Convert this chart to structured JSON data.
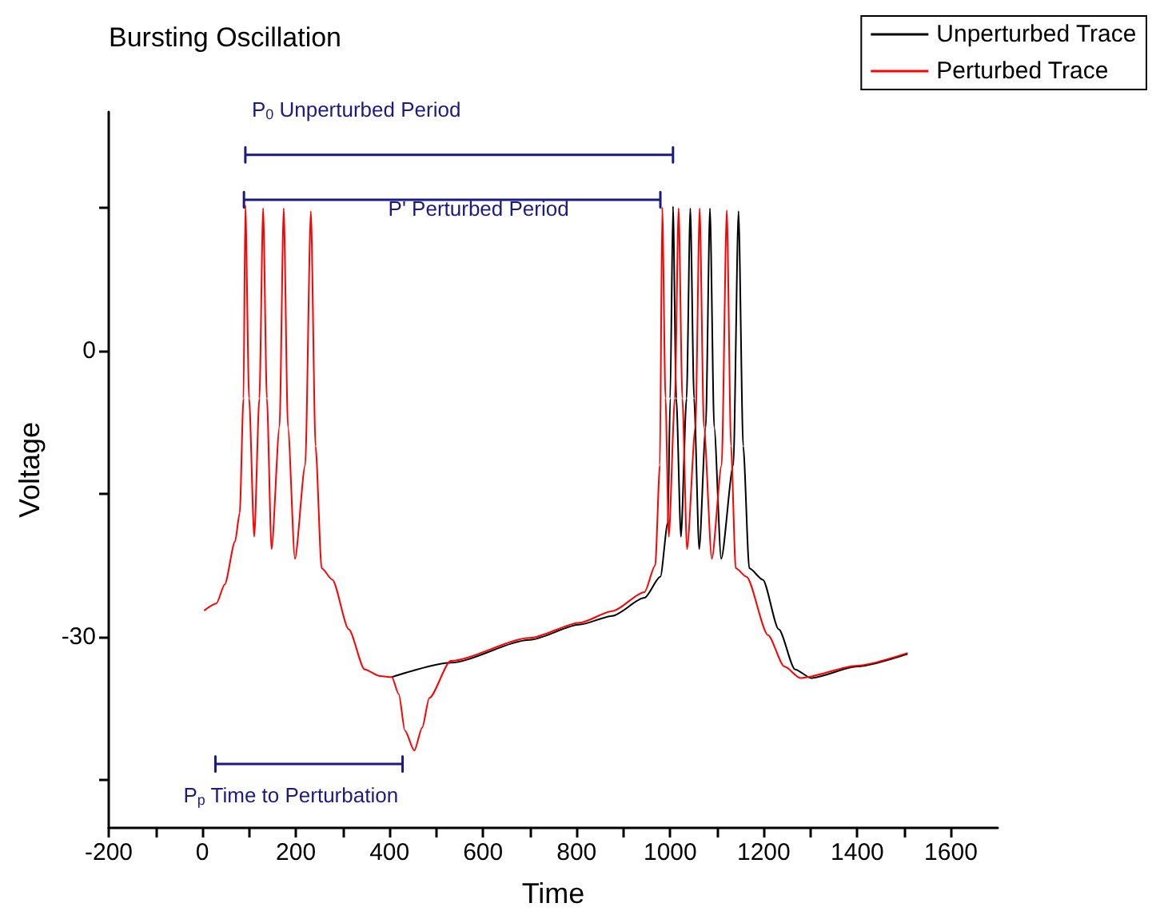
{
  "chart_data": {
    "type": "line",
    "title": "Bursting Oscillation",
    "xlabel": "Time",
    "ylabel": "Voltage",
    "xlim": [
      -200,
      1700
    ],
    "ylim": [
      -50,
      25
    ],
    "xticks": [
      -200,
      {
        "value": -100,
        "label": null
      },
      0,
      {
        "value": 100,
        "label": null
      },
      200,
      {
        "value": 300,
        "label": null
      },
      400,
      {
        "value": 500,
        "label": null
      },
      600,
      {
        "value": 700,
        "label": null
      },
      800,
      {
        "value": 900,
        "label": null
      },
      1000,
      {
        "value": 1100,
        "label": null
      },
      1200,
      {
        "value": 1300,
        "label": null
      },
      1400,
      {
        "value": 1500,
        "label": null
      },
      1600
    ],
    "yticks": [
      {
        "value": -45,
        "label": null
      },
      -30,
      {
        "value": -15,
        "label": null
      },
      0,
      {
        "value": 15,
        "label": null
      }
    ],
    "grid": false,
    "legend": "top right",
    "marker": "none",
    "line_style": "solid",
    "series": [
      {
        "name": "Unperturbed Trace",
        "color": "#000000",
        "x": [
          405,
          531,
          700,
          807,
          876,
          945,
          979,
          995,
          1000,
          1006,
          1013,
          1023,
          1035,
          1043,
          1051,
          1062,
          1076,
          1085,
          1094,
          1109,
          1135,
          1146,
          1156,
          1169,
          1198,
          1232,
          1267,
          1301,
          1400,
          1506
        ],
        "values": [
          -34.2,
          -32.7,
          -30.3,
          -28.7,
          -27.8,
          -25.9,
          -23.7,
          -18,
          -5,
          15.1,
          -5,
          -19.5,
          -5,
          14.9,
          -5,
          -20.8,
          -8,
          14.9,
          -8,
          -21.8,
          -12,
          14.6,
          -10,
          -22.8,
          -24,
          -29.2,
          -33.4,
          -34.3,
          -33.1,
          -31.8
        ]
      },
      {
        "name": "Perturbed Trace",
        "color": "#ff0000",
        "x": [
          5,
          30,
          48,
          70,
          80,
          88,
          92,
          100,
          111,
          122,
          130,
          138,
          148,
          165,
          174,
          183,
          198,
          220,
          232,
          242,
          255,
          278,
          313,
          347,
          380,
          405,
          420,
          433,
          453,
          470,
          485,
          531,
          700,
          807,
          876,
          945,
          968,
          978,
          983,
          990,
          997,
          1010,
          1018,
          1026,
          1036,
          1054,
          1063,
          1072,
          1089,
          1110,
          1121,
          1130,
          1140,
          1163,
          1209,
          1244,
          1278,
          1400,
          1506
        ],
        "values": [
          -27.2,
          -26.5,
          -24.5,
          -20,
          -17,
          -5,
          15.2,
          -5,
          -19.5,
          -5,
          14.9,
          -5,
          -20.8,
          -8,
          14.9,
          -8,
          -21.8,
          -12,
          14.6,
          -10,
          -22.8,
          -24,
          -29.2,
          -33.4,
          -34.1,
          -34.2,
          -36,
          -39.8,
          -41.9,
          -39.5,
          -36.4,
          -32.5,
          -30.1,
          -28.5,
          -27.3,
          -25.3,
          -22.5,
          -12,
          15,
          -5,
          -19.5,
          -5,
          14.9,
          -5,
          -20.8,
          -8,
          14.9,
          -8,
          -21.8,
          -12,
          14.7,
          -10,
          -22.8,
          -23.7,
          -29.8,
          -33.1,
          -34.3,
          -33.0,
          -31.7
        ]
      },
      {
        "color": "#1a1a80",
        "x": [
          92,
          92,
          92,
          1006,
          1006,
          1006
        ],
        "values": [
          21.3,
          19.7,
          20.5,
          20.5,
          21.3,
          19.7
        ]
      },
      {
        "color": "#1a1a80",
        "x": [
          89,
          89,
          89,
          979,
          979,
          979
        ],
        "values": [
          16.6,
          15.0,
          15.8,
          15.8,
          16.6,
          15.0
        ]
      },
      {
        "color": "#1a1a80",
        "x": [
          28,
          28,
          28,
          428,
          428,
          428
        ],
        "values": [
          -42.5,
          -44.1,
          -43.3,
          -43.3,
          -42.5,
          -44.1
        ]
      }
    ],
    "annotations": [
      "P$_{0}$ Unperturbed Period",
      "P' Perturbed Period",
      "P$_{p}$ Time to Perturbation"
    ]
  }
}
